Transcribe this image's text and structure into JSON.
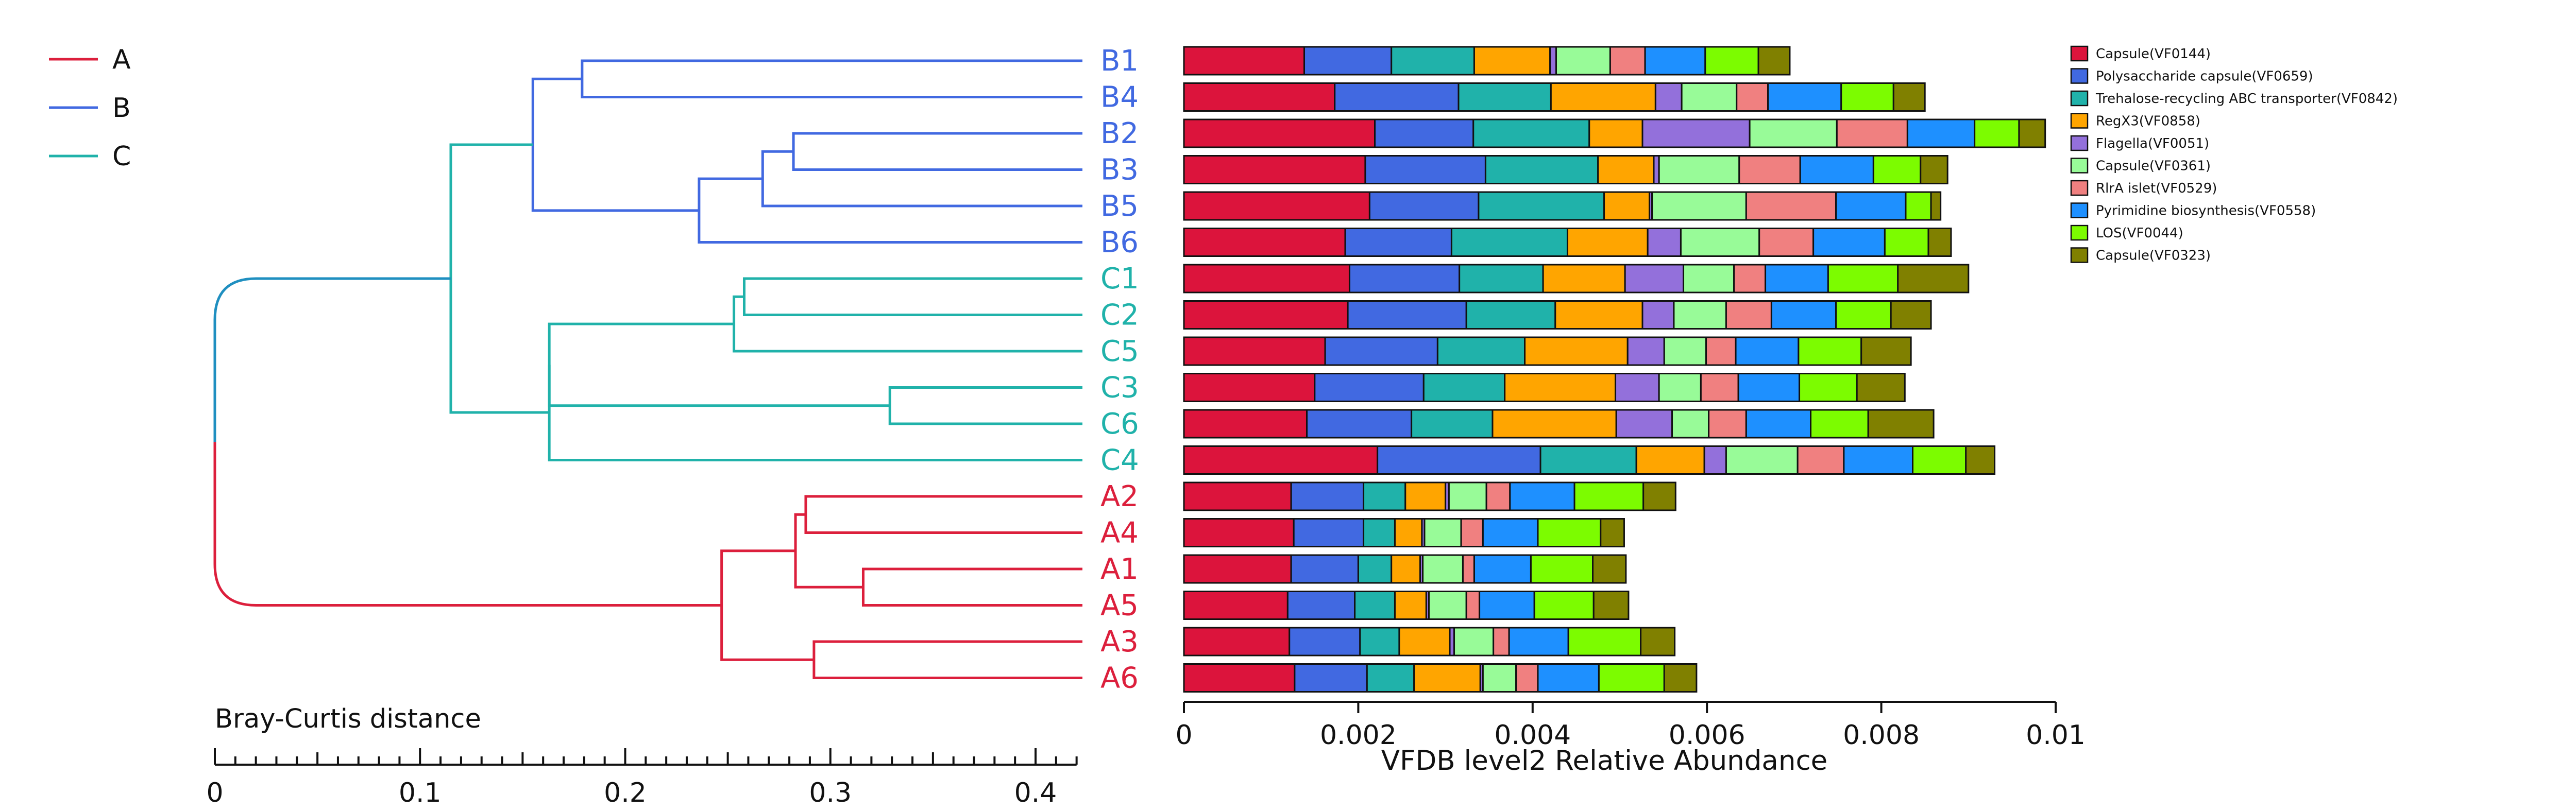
{
  "group_legend": {
    "items": [
      {
        "label": "A",
        "color": "#dc1f3c"
      },
      {
        "label": "B",
        "color": "#4169e1"
      },
      {
        "label": "C",
        "color": "#20b2aa"
      }
    ]
  },
  "colors": {
    "root_branch": "#1f8fc0"
  },
  "chart_data": [
    {
      "type": "dendrogram",
      "xlabel": "Bray-Curtis distance",
      "xlim": [
        0,
        0.42
      ],
      "x_major_ticks": [
        0,
        0.1,
        0.2,
        0.3,
        0.4
      ],
      "x_tick_labels": [
        "0",
        "0.1",
        "0.2",
        "0.3",
        "0.4"
      ],
      "x_minor_step": 0.01,
      "leaves": [
        "B1",
        "B4",
        "B2",
        "B3",
        "B5",
        "B6",
        "C1",
        "C2",
        "C5",
        "C3",
        "C6",
        "C4",
        "A2",
        "A4",
        "A1",
        "A5",
        "A3",
        "A6"
      ],
      "leaf_groups": [
        "B",
        "B",
        "B",
        "B",
        "B",
        "B",
        "C",
        "C",
        "C",
        "C",
        "C",
        "C",
        "A",
        "A",
        "A",
        "A",
        "A",
        "A"
      ],
      "merges": [
        {
          "a": "B2",
          "b": "B3",
          "height": 0.282,
          "group": "B"
        },
        {
          "a": "B1",
          "b": "B4",
          "height": 0.179,
          "group": "B"
        },
        {
          "a": "B2B3",
          "b": "B5",
          "height": 0.267,
          "group": "B"
        },
        {
          "a": "B2B3B5",
          "b": "B6",
          "height": 0.236,
          "group": "B"
        },
        {
          "a": "B1B4",
          "b": "B2B3B5B6",
          "height": 0.155,
          "group": "B"
        },
        {
          "a": "C1",
          "b": "C2",
          "height": 0.258,
          "group": "C"
        },
        {
          "a": "C1C2",
          "b": "C5",
          "height": 0.253,
          "group": "C"
        },
        {
          "a": "C3",
          "b": "C6",
          "height": 0.329,
          "group": "C"
        },
        {
          "a": "C1C2C5",
          "b": "C3C6",
          "height": 0.163,
          "group": "C"
        },
        {
          "a": "C1C2C5C3C6",
          "b": "C4",
          "height": 0.163,
          "group": "C"
        },
        {
          "a": "Bclade",
          "b": "Cclade",
          "height": 0.115,
          "group": "BC"
        },
        {
          "a": "A2",
          "b": "A4",
          "height": 0.288,
          "group": "A"
        },
        {
          "a": "A1",
          "b": "A5",
          "height": 0.316,
          "group": "A"
        },
        {
          "a": "A2A4",
          "b": "A1A5",
          "height": 0.283,
          "group": "A"
        },
        {
          "a": "A3",
          "b": "A6",
          "height": 0.292,
          "group": "A"
        },
        {
          "a": "A2A4A1A5",
          "b": "A3A6",
          "height": 0.247,
          "group": "A"
        },
        {
          "a": "Aclade",
          "b": "BCclade",
          "height": 0.0,
          "group": "root"
        }
      ]
    },
    {
      "type": "stacked_bar_horizontal",
      "xlabel": "VFDB level2 Relative Abundance",
      "xlim": [
        0,
        0.01
      ],
      "x_ticks": [
        0,
        0.002,
        0.004,
        0.006,
        0.008,
        0.01
      ],
      "x_tick_labels": [
        "0",
        "0.002",
        "0.004",
        "0.006",
        "0.008",
        "0.01"
      ],
      "legend_position": "right",
      "categories": [
        "B1",
        "B4",
        "B2",
        "B3",
        "B5",
        "B6",
        "C1",
        "C2",
        "C5",
        "C3",
        "C6",
        "C4",
        "A2",
        "A4",
        "A1",
        "A5",
        "A3",
        "A6"
      ],
      "series": [
        {
          "name": "Capsule(VF0144)",
          "color": "#dc143c",
          "values": [
            0.00138,
            0.00173,
            0.00219,
            0.00208,
            0.00213,
            0.00185,
            0.0019,
            0.00188,
            0.00162,
            0.0015,
            0.00141,
            0.00222,
            0.00123,
            0.00126,
            0.00123,
            0.00119,
            0.00121,
            0.00127
          ]
        },
        {
          "name": "Polysaccharide capsule(VF0659)",
          "color": "#4169e1",
          "values": [
            0.001,
            0.00142,
            0.00113,
            0.00138,
            0.00125,
            0.00122,
            0.00126,
            0.00136,
            0.00129,
            0.00125,
            0.0012,
            0.00187,
            0.00083,
            0.0008,
            0.00077,
            0.00077,
            0.00081,
            0.00083
          ]
        },
        {
          "name": "Trehalose-recycling ABC transporter(VF0842)",
          "color": "#20b2aa",
          "values": [
            0.00095,
            0.00106,
            0.00133,
            0.00129,
            0.00144,
            0.00133,
            0.00096,
            0.00102,
            0.001,
            0.00093,
            0.00093,
            0.0011,
            0.00048,
            0.00036,
            0.00038,
            0.00046,
            0.00045,
            0.00054
          ]
        },
        {
          "name": "RegX3(VF0858)",
          "color": "#ffa500",
          "values": [
            0.00087,
            0.0012,
            0.00061,
            0.00064,
            0.00052,
            0.00092,
            0.00094,
            0.001,
            0.00118,
            0.00127,
            0.00142,
            0.00078,
            0.00046,
            0.00031,
            0.00033,
            0.00036,
            0.00058,
            0.00076
          ]
        },
        {
          "name": "Flagella(VF0051)",
          "color": "#9370db",
          "values": [
            7e-05,
            0.0003,
            0.00123,
            6e-05,
            3e-05,
            0.00038,
            0.00067,
            0.00036,
            0.00042,
            0.0005,
            0.00064,
            0.00025,
            4e-05,
            3e-05,
            3e-05,
            3e-05,
            5e-05,
            3e-05
          ]
        },
        {
          "name": "Capsule(VF0361)",
          "color": "#98fb98",
          "values": [
            0.00062,
            0.00063,
            0.001,
            0.00092,
            0.00108,
            0.0009,
            0.00058,
            0.0006,
            0.00048,
            0.00048,
            0.00042,
            0.00082,
            0.00043,
            0.00042,
            0.00046,
            0.00043,
            0.00045,
            0.00038
          ]
        },
        {
          "name": "RlrA islet(VF0529)",
          "color": "#f08080",
          "values": [
            0.0004,
            0.00036,
            0.00081,
            0.0007,
            0.00103,
            0.00062,
            0.00036,
            0.00052,
            0.00034,
            0.00043,
            0.00043,
            0.00053,
            0.00027,
            0.00025,
            0.00013,
            0.00015,
            0.00018,
            0.00025
          ]
        },
        {
          "name": "Pyrimidine biosynthesis(VF0558)",
          "color": "#1e90ff",
          "values": [
            0.00069,
            0.00084,
            0.00077,
            0.00084,
            0.0008,
            0.00082,
            0.00072,
            0.00074,
            0.00072,
            0.0007,
            0.00074,
            0.00079,
            0.00074,
            0.00063,
            0.00065,
            0.00063,
            0.00068,
            0.0007
          ]
        },
        {
          "name": "LOS(VF0044)",
          "color": "#7cfc00",
          "values": [
            0.00061,
            0.0006,
            0.00051,
            0.00054,
            0.00029,
            0.0005,
            0.0008,
            0.00063,
            0.00072,
            0.00066,
            0.00066,
            0.00061,
            0.00079,
            0.00072,
            0.00071,
            0.00068,
            0.00083,
            0.00075
          ]
        },
        {
          "name": "Capsule(VF0323)",
          "color": "#808000",
          "values": [
            0.00036,
            0.00036,
            0.0003,
            0.00031,
            0.00011,
            0.00026,
            0.00081,
            0.00046,
            0.00057,
            0.00055,
            0.00075,
            0.00033,
            0.00037,
            0.00027,
            0.00038,
            0.0004,
            0.00039,
            0.00037
          ]
        }
      ]
    }
  ]
}
